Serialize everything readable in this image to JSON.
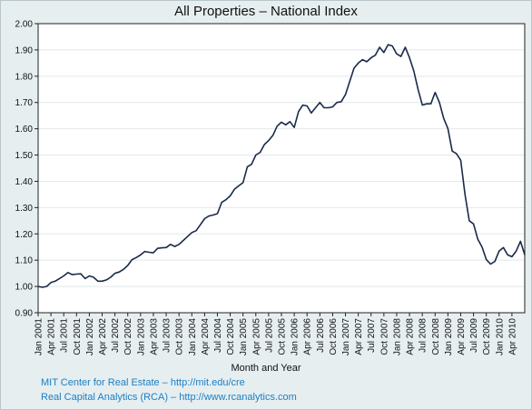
{
  "chart_data": {
    "type": "line",
    "title": "All Properties – National Index",
    "xlabel": "Month and Year",
    "ylabel": "",
    "ylim": [
      0.9,
      2.0
    ],
    "yticks": [
      "0.90",
      "1.00",
      "1.10",
      "1.20",
      "1.30",
      "1.40",
      "1.50",
      "1.60",
      "1.70",
      "1.80",
      "1.90",
      "2.00"
    ],
    "grid": true,
    "legend": "none",
    "line_color": "#1a2a4a",
    "xticks": [
      "Jan 2001",
      "Apr 2001",
      "Jul 2001",
      "Oct 2001",
      "Jan 2002",
      "Apr 2002",
      "Jul 2002",
      "Oct 2002",
      "Jan 2003",
      "Apr 2003",
      "Jul 2003",
      "Oct 2003",
      "Jan 2004",
      "Apr 2004",
      "Jul 2004",
      "Oct 2004",
      "Jan 2005",
      "Apr 2005",
      "Jul 2005",
      "Oct 2005",
      "Jan 2006",
      "Apr 2006",
      "Jul 2006",
      "Oct 2006",
      "Jan 2007",
      "Apr 2007",
      "Jul 2007",
      "Oct 2007",
      "Jan 2008",
      "Apr 2008",
      "Jul 2008",
      "Oct 2008",
      "Jan 2009",
      "Apr 2009",
      "Jul 2009",
      "Oct 2009",
      "Jan 2010",
      "Apr 2010"
    ],
    "series": [
      {
        "values": [
          1.0,
          0.997,
          1.0,
          1.015,
          1.02,
          1.03,
          1.04,
          1.053,
          1.045,
          1.047,
          1.048,
          1.03,
          1.04,
          1.035,
          1.02,
          1.02,
          1.025,
          1.035,
          1.05,
          1.055,
          1.065,
          1.08,
          1.102,
          1.11,
          1.12,
          1.133,
          1.13,
          1.128,
          1.145,
          1.147,
          1.148,
          1.16,
          1.152,
          1.16,
          1.175,
          1.19,
          1.205,
          1.212,
          1.235,
          1.258,
          1.268,
          1.272,
          1.277,
          1.32,
          1.33,
          1.345,
          1.37,
          1.383,
          1.395,
          1.455,
          1.465,
          1.5,
          1.51,
          1.54,
          1.555,
          1.575,
          1.61,
          1.625,
          1.615,
          1.627,
          1.605,
          1.665,
          1.69,
          1.687,
          1.66,
          1.68,
          1.7,
          1.68,
          1.68,
          1.683,
          1.7,
          1.703,
          1.73,
          1.78,
          1.83,
          1.85,
          1.863,
          1.855,
          1.87,
          1.88,
          1.91,
          1.89,
          1.92,
          1.915,
          1.885,
          1.875,
          1.91,
          1.87,
          1.82,
          1.75,
          1.69,
          1.695,
          1.695,
          1.738,
          1.7,
          1.64,
          1.6,
          1.515,
          1.505,
          1.48,
          1.35,
          1.25,
          1.238,
          1.18,
          1.15,
          1.102,
          1.085,
          1.095,
          1.135,
          1.148,
          1.12,
          1.113,
          1.135,
          1.172,
          1.12
        ]
      }
    ]
  },
  "sources": [
    "MIT Center for Real Estate – http://mit.edu/cre",
    "Real Capital Analytics (RCA) – http://www.rcanalytics.com"
  ]
}
